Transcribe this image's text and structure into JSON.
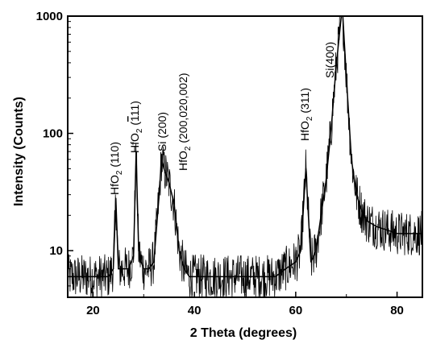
{
  "chart_data": {
    "type": "line",
    "title": "",
    "xlabel": "2 Theta (degrees)",
    "ylabel": "Intensity (Counts)",
    "xlim": [
      15,
      85
    ],
    "ylim": [
      4,
      1000
    ],
    "y_scale": "log",
    "grid": false,
    "x_ticks": [
      20,
      40,
      60,
      80
    ],
    "x_tick_labels": [
      "20",
      "40",
      "60",
      "80"
    ],
    "y_ticks": [
      10,
      100,
      1000
    ],
    "y_tick_labels": [
      "10",
      "100",
      "1000"
    ],
    "series": [
      {
        "color": "#000000",
        "x": [
          15,
          17,
          19,
          21,
          23,
          24,
          24.5,
          25,
          26,
          27,
          28,
          28.5,
          29,
          29.5,
          30,
          31,
          32,
          33,
          33.5,
          34,
          35,
          36,
          37,
          38,
          39,
          40,
          42,
          44,
          46,
          48,
          50,
          52,
          54,
          56,
          58,
          60,
          61,
          62,
          62.5,
          63,
          64,
          65,
          66,
          67,
          68,
          69,
          69.3,
          70,
          71,
          72,
          73,
          74,
          76,
          78,
          80,
          82,
          85
        ],
        "y": [
          6,
          6,
          6,
          6,
          6,
          7,
          28,
          7,
          7,
          7,
          9,
          70,
          10,
          8,
          7,
          7,
          8,
          28,
          60,
          50,
          38,
          25,
          10,
          7,
          6,
          6,
          6,
          6,
          6,
          6,
          6,
          6,
          6,
          6,
          7,
          8,
          10,
          50,
          20,
          8,
          10,
          20,
          40,
          110,
          380,
          1000,
          1000,
          300,
          60,
          30,
          22,
          18,
          16,
          15,
          14,
          14,
          14
        ]
      }
    ],
    "annotations": [
      {
        "text": "HfO2 (110)",
        "x": 24.5
      },
      {
        "text": "HfO2 (-111)",
        "x": 28.5
      },
      {
        "text": "Si (200)",
        "x": 33.5
      },
      {
        "text": "HfO2 (200,020,002)",
        "x": 35.5
      },
      {
        "text": "HfO2 (311)",
        "x": 62.5
      },
      {
        "text": "Si(400)",
        "x": 68
      }
    ]
  }
}
